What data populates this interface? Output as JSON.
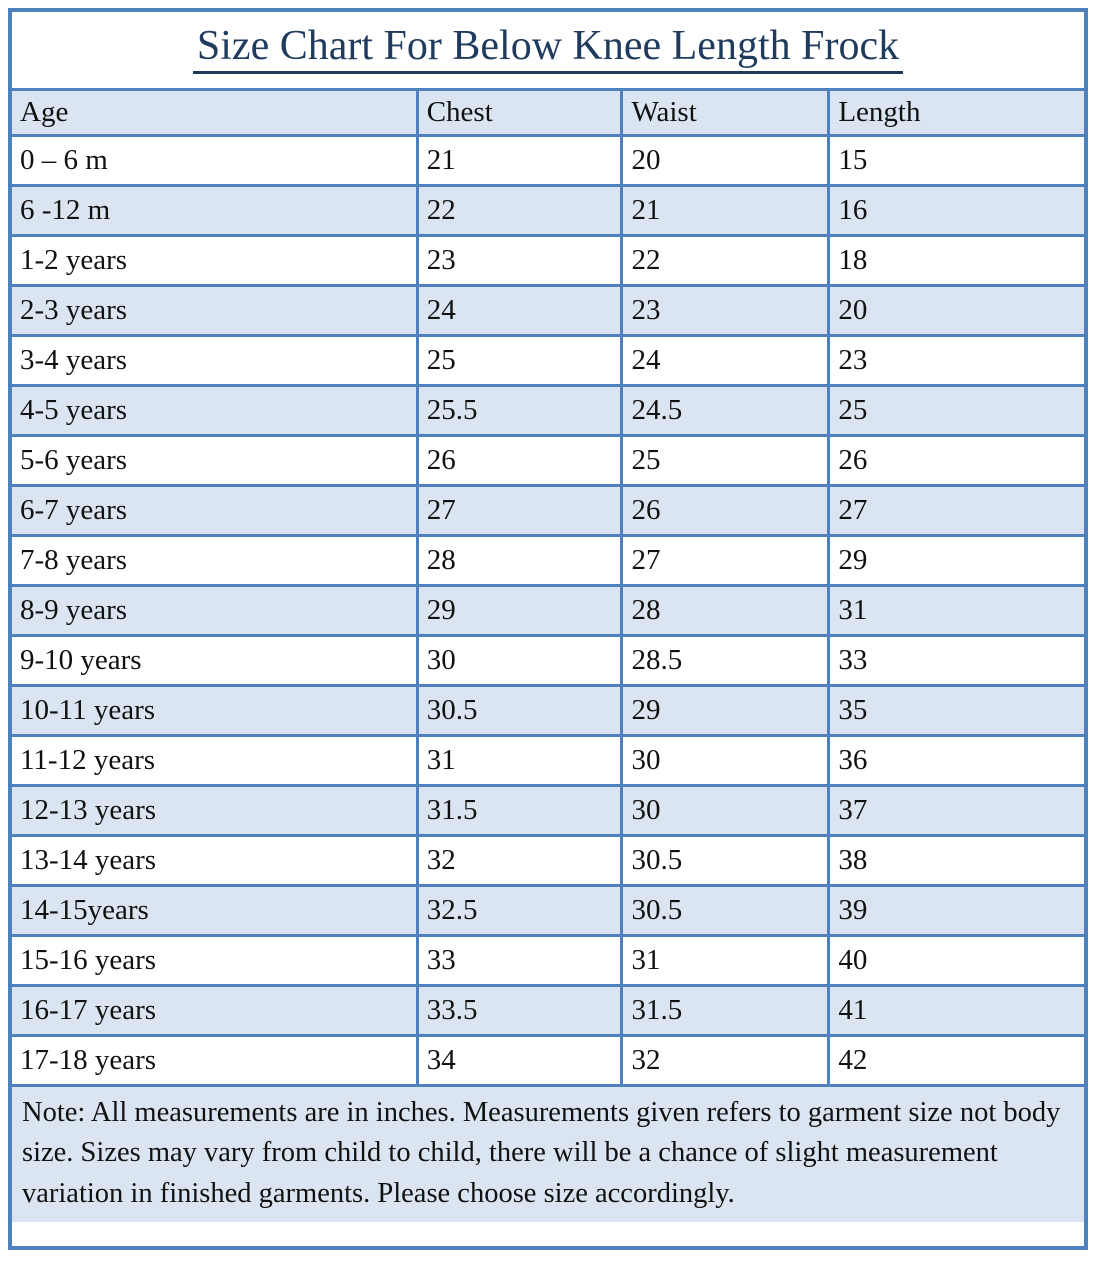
{
  "title": "Size Chart For Below Knee Length Frock",
  "table": {
    "columns": [
      "Age",
      "Chest",
      "Waist",
      "Length"
    ],
    "rows": [
      {
        "age": "0 – 6 m",
        "chest": "21",
        "waist": "20",
        "length": "15"
      },
      {
        "age": "6 -12 m",
        "chest": "22",
        "waist": "21",
        "length": "16"
      },
      {
        "age": "1-2 years",
        "chest": "23",
        "waist": "22",
        "length": "18"
      },
      {
        "age": "2-3 years",
        "chest": "24",
        "waist": "23",
        "length": "20"
      },
      {
        "age": "3-4 years",
        "chest": "25",
        "waist": "24",
        "length": "23"
      },
      {
        "age": "4-5 years",
        "chest": "25.5",
        "waist": "24.5",
        "length": "25"
      },
      {
        "age": "5-6 years",
        "chest": "26",
        "waist": "25",
        "length": "26"
      },
      {
        "age": "6-7 years",
        "chest": "27",
        "waist": "26",
        "length": "27"
      },
      {
        "age": "7-8 years",
        "chest": "28",
        "waist": "27",
        "length": "29"
      },
      {
        "age": "8-9 years",
        "chest": "29",
        "waist": "28",
        "length": "31"
      },
      {
        "age": "9-10 years",
        "chest": "30",
        "waist": "28.5",
        "length": "33"
      },
      {
        "age": "10-11 years",
        "chest": "30.5",
        "waist": "29",
        "length": "35"
      },
      {
        "age": "11-12 years",
        "chest": "31",
        "waist": "30",
        "length": "36"
      },
      {
        "age": "12-13 years",
        "chest": "31.5",
        "waist": "30",
        "length": "37"
      },
      {
        "age": "13-14 years",
        "chest": "32",
        "waist": "30.5",
        "length": "38"
      },
      {
        "age": "14-15years",
        "chest": "32.5",
        "waist": "30.5",
        "length": "39"
      },
      {
        "age": "15-16 years",
        "chest": "33",
        "waist": "31",
        "length": "40"
      },
      {
        "age": "16-17 years",
        "chest": "33.5",
        "waist": "31.5",
        "length": "41"
      },
      {
        "age": "17-18 years",
        "chest": "34",
        "waist": "32",
        "length": "42"
      }
    ]
  },
  "note": "Note: All measurements are in inches. Measurements given refers to garment size not body size. Sizes may vary from child to child, there will be a chance of slight measurement variation in finished garments. Please choose size accordingly.",
  "colors": {
    "border_blue": "#4f81bd",
    "row_shading_blue": "#dbe5f1",
    "title_navy": "#1f3b5e",
    "body_text": "#111111",
    "background": "#ffffff"
  }
}
